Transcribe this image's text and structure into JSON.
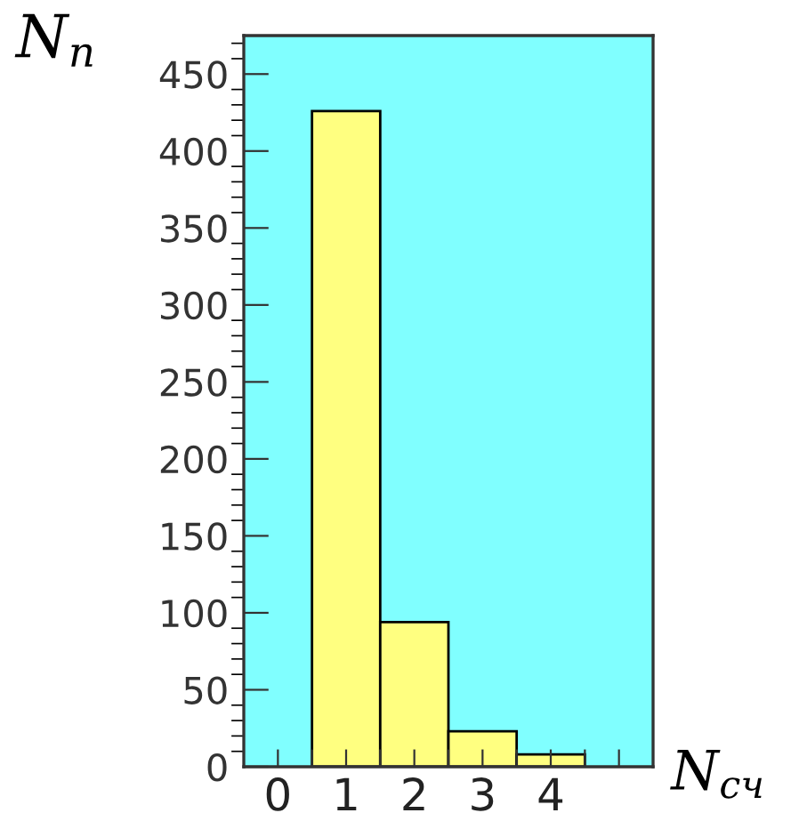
{
  "chart_data": {
    "type": "histogram",
    "xlabel": "N$_{сч}$",
    "ylabel": "N$_{n}$",
    "bins": [
      0.5,
      1.5,
      2.5,
      3.5,
      4.5
    ],
    "values": [
      426,
      94,
      23,
      8
    ],
    "color": "#ffff80",
    "xlim": [
      -0.5,
      5.5
    ],
    "xticks": [
      0,
      {
        "value": 0.5,
        "label": null
      },
      1,
      {
        "value": 1.5,
        "label": null
      },
      2,
      {
        "value": 2.5,
        "label": null
      },
      3,
      {
        "value": 3.5,
        "label": null
      },
      4,
      {
        "value": 4.5,
        "label": null
      },
      {
        "value": 5,
        "label": null
      }
    ],
    "ylim": [
      0,
      475
    ],
    "yticks": [
      0,
      50,
      100,
      150,
      200,
      250,
      300,
      350,
      400,
      450
    ],
    "grid": false,
    "legend": false
  }
}
